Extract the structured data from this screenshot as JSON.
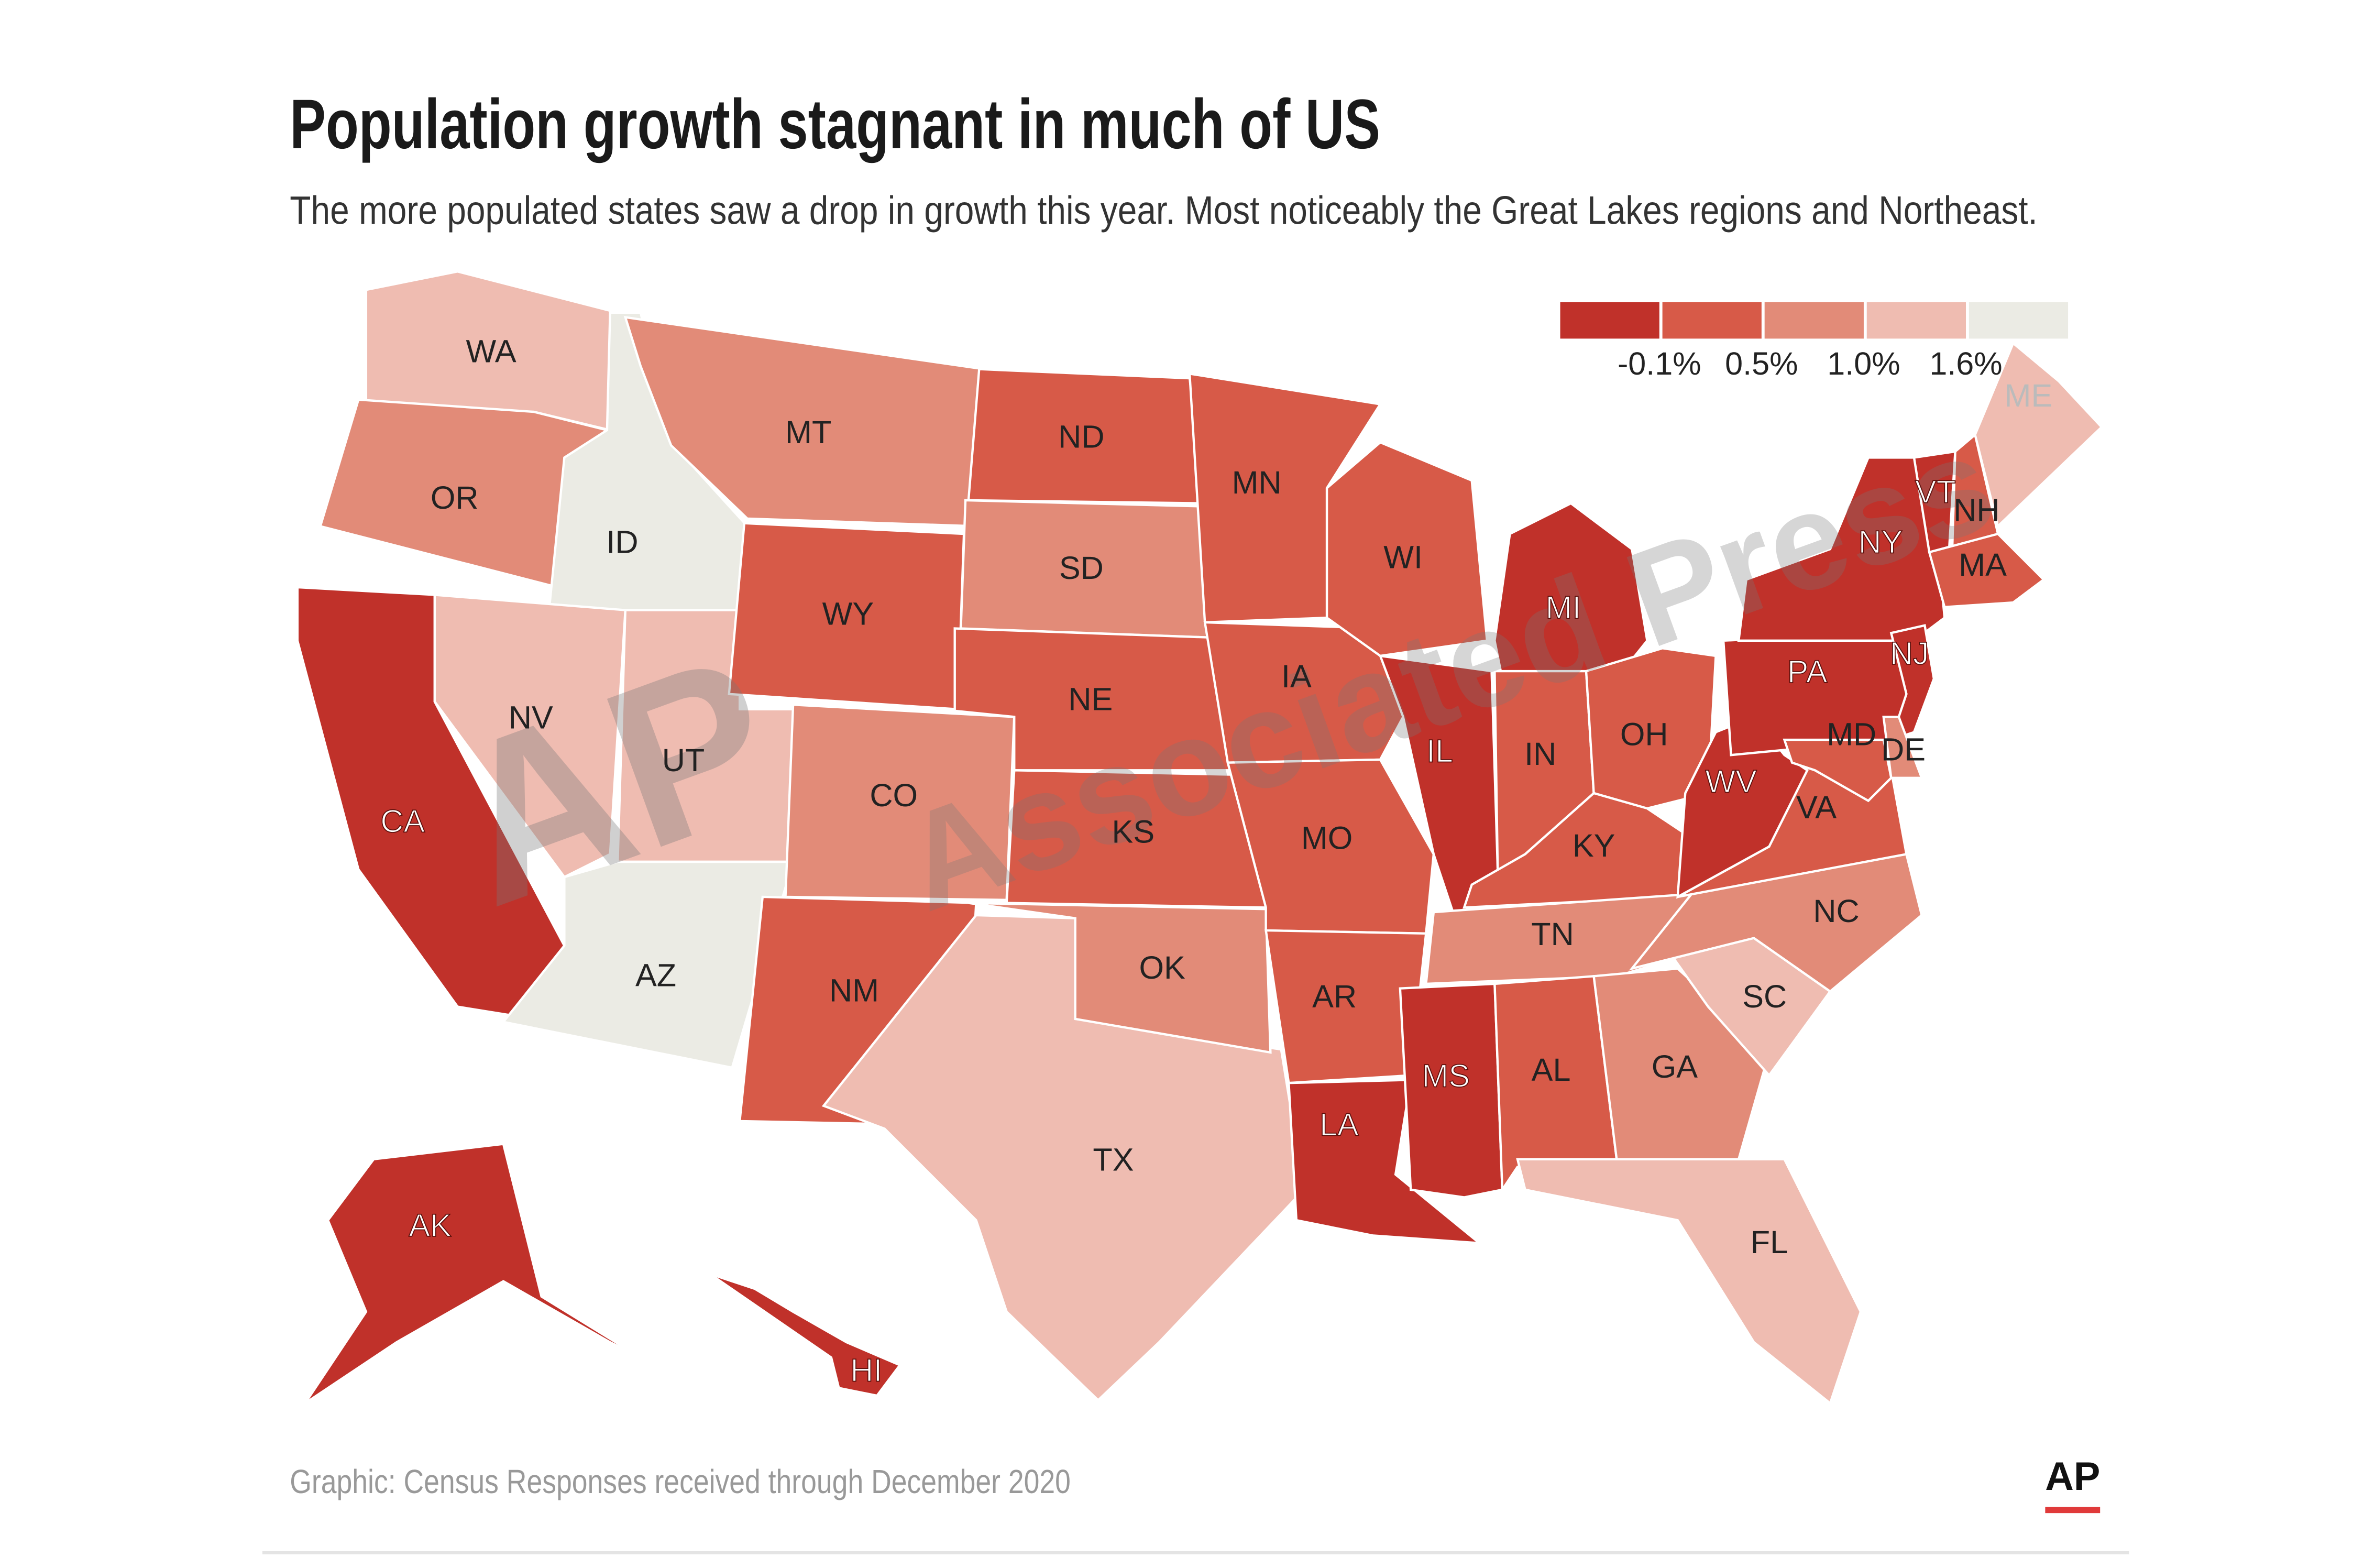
{
  "title": "Population growth stagnant in much of US",
  "subtitle": "The more populated states saw a drop in growth this year. Most noticeably the Great Lakes regions and Northeast.",
  "legend": {
    "colors": [
      "#c0312a",
      "#d75a48",
      "#e28b78",
      "#efbcb1",
      "#ebebe4"
    ],
    "ticks": [
      "-0.1%",
      "0.5%",
      "1.0%",
      "1.6%"
    ]
  },
  "watermark": [
    "AP",
    "Associated Press"
  ],
  "states": [
    {
      "label": "WA",
      "color": "#efbcb1"
    },
    {
      "label": "OR",
      "color": "#e28b78"
    },
    {
      "label": "CA",
      "color": "#c0312a"
    },
    {
      "label": "ID",
      "color": "#ebebe4"
    },
    {
      "label": "NV",
      "color": "#efbcb1"
    },
    {
      "label": "UT",
      "color": "#efbcb1"
    },
    {
      "label": "AZ",
      "color": "#ebebe4"
    },
    {
      "label": "MT",
      "color": "#e28b78"
    },
    {
      "label": "WY",
      "color": "#d75a48"
    },
    {
      "label": "CO",
      "color": "#e28b78"
    },
    {
      "label": "NM",
      "color": "#d75a48"
    },
    {
      "label": "ND",
      "color": "#d75a48"
    },
    {
      "label": "SD",
      "color": "#e28b78"
    },
    {
      "label": "NE",
      "color": "#d75a48"
    },
    {
      "label": "KS",
      "color": "#d75a48"
    },
    {
      "label": "TX",
      "color": "#efbcb1"
    },
    {
      "label": "OK",
      "color": "#e28b78"
    },
    {
      "label": "MN",
      "color": "#d75a48"
    },
    {
      "label": "IA",
      "color": "#d75a48"
    },
    {
      "label": "MO",
      "color": "#d75a48"
    },
    {
      "label": "AR",
      "color": "#d75a48"
    },
    {
      "label": "LA",
      "color": "#c0312a"
    },
    {
      "label": "WI",
      "color": "#d75a48"
    },
    {
      "label": "IL",
      "color": "#c0312a"
    },
    {
      "label": "MI",
      "color": "#c0312a"
    },
    {
      "label": "IN",
      "color": "#d75a48"
    },
    {
      "label": "OH",
      "color": "#d75a48"
    },
    {
      "label": "KY",
      "color": "#d75a48"
    },
    {
      "label": "TN",
      "color": "#e28b78"
    },
    {
      "label": "MS",
      "color": "#c0312a"
    },
    {
      "label": "AL",
      "color": "#d75a48"
    },
    {
      "label": "GA",
      "color": "#e28b78"
    },
    {
      "label": "FL",
      "color": "#efbcb1"
    },
    {
      "label": "SC",
      "color": "#efbcb1"
    },
    {
      "label": "NC",
      "color": "#e28b78"
    },
    {
      "label": "VA",
      "color": "#d75a48"
    },
    {
      "label": "WV",
      "color": "#c0312a"
    },
    {
      "label": "PA",
      "color": "#c0312a"
    },
    {
      "label": "NY",
      "color": "#c0312a"
    },
    {
      "label": "VT",
      "color": "#c0312a"
    },
    {
      "label": "NH",
      "color": "#d75a48"
    },
    {
      "label": "ME",
      "color": "#efbcb1"
    },
    {
      "label": "MA",
      "color": "#d75a48"
    },
    {
      "label": "NJ",
      "color": "#c0312a"
    },
    {
      "label": "MD",
      "color": "#d75a48"
    },
    {
      "label": "DE",
      "color": "#e28b78"
    },
    {
      "label": "AK",
      "color": "#c0312a"
    },
    {
      "label": "HI",
      "color": "#c0312a"
    }
  ],
  "footer": "Graphic: Census Responses received through December 2020",
  "logo": "AP"
}
